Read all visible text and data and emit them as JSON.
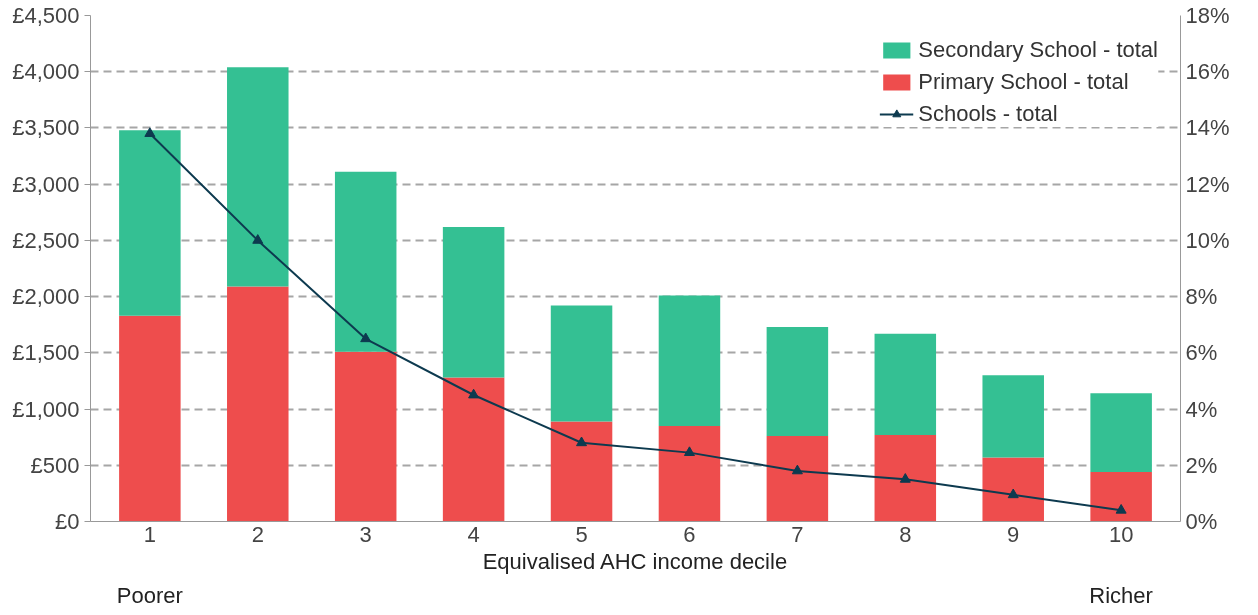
{
  "chart_data": {
    "type": "bar",
    "stacked": true,
    "xlabel": "Equivalised AHC income decile",
    "categories": [
      "1",
      "2",
      "3",
      "4",
      "5",
      "6",
      "7",
      "8",
      "9",
      "10"
    ],
    "series": [
      {
        "name": "Primary School - total",
        "color": "#ee4d4d",
        "values": [
          1830,
          2090,
          1510,
          1280,
          890,
          850,
          760,
          770,
          570,
          440
        ]
      },
      {
        "name": "Secondary School - total",
        "color": "#34c093",
        "values": [
          1650,
          1950,
          1600,
          1340,
          1030,
          1160,
          970,
          900,
          730,
          700
        ]
      },
      {
        "name": "Schools - total",
        "type": "line",
        "axis": "y2",
        "marker": "triangle",
        "color": "#0d3a4f",
        "values": [
          13.8,
          10.0,
          6.5,
          4.5,
          2.8,
          2.45,
          1.8,
          1.5,
          0.95,
          0.4
        ]
      }
    ],
    "ylim": [
      0,
      4500
    ],
    "yticks": [
      {
        "value": 0,
        "label": "£0"
      },
      {
        "value": 500,
        "label": "£500"
      },
      {
        "value": 1000,
        "label": "£1,000"
      },
      {
        "value": 1500,
        "label": "£1,500"
      },
      {
        "value": 2000,
        "label": "£2,000"
      },
      {
        "value": 2500,
        "label": "£2,500"
      },
      {
        "value": 3000,
        "label": "£3,000"
      },
      {
        "value": 3500,
        "label": "£3,500"
      },
      {
        "value": 4000,
        "label": "£4,000"
      },
      {
        "value": 4500,
        "label": "£4,500"
      }
    ],
    "y2lim": [
      0,
      18
    ],
    "y2ticks": [
      {
        "value": 0,
        "label": "0%"
      },
      {
        "value": 2,
        "label": "2%"
      },
      {
        "value": 4,
        "label": "4%"
      },
      {
        "value": 6,
        "label": "6%"
      },
      {
        "value": 8,
        "label": "8%"
      },
      {
        "value": 10,
        "label": "10%"
      },
      {
        "value": 12,
        "label": "12%"
      },
      {
        "value": 14,
        "label": "14%"
      },
      {
        "value": 16,
        "label": "16%"
      },
      {
        "value": 18,
        "label": "18%"
      }
    ],
    "annotations": [
      "Poorer",
      "Richer"
    ],
    "grid": "y",
    "legend": "top right"
  }
}
